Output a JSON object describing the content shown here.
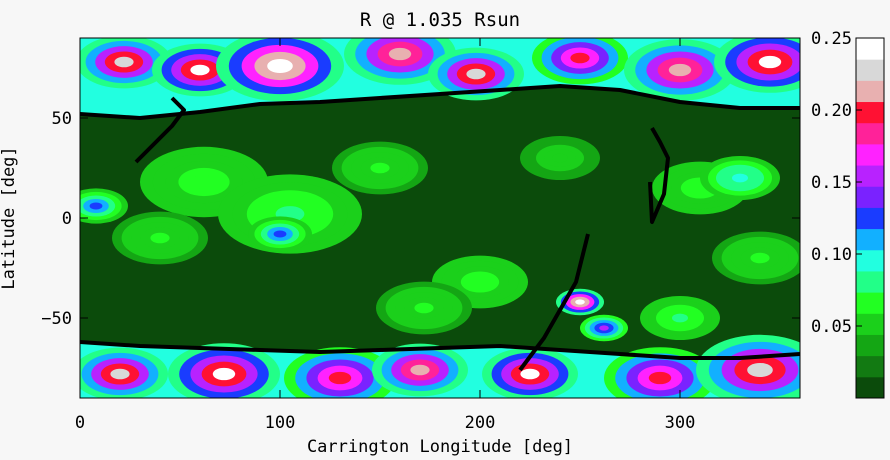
{
  "chart_data": {
    "type": "heatmap",
    "title": "R @ 1.035 Rsun",
    "xlabel": "Carrington Longitude [deg]",
    "ylabel": "Latitude [deg]",
    "xlim": [
      0,
      360
    ],
    "ylim": [
      -90,
      90
    ],
    "x_ticks": [
      0,
      100,
      200,
      300
    ],
    "x_tick_labels": [
      "0",
      "100",
      "200",
      "300"
    ],
    "y_ticks": [
      -50,
      0,
      50
    ],
    "y_tick_labels": [
      "−50",
      "0",
      "50"
    ],
    "colorbar": {
      "range": [
        0.0,
        0.25
      ],
      "ticks": [
        0.05,
        0.1,
        0.15,
        0.2,
        0.25
      ],
      "tick_labels": [
        "0.05",
        "0.10",
        "0.15",
        "0.20",
        "0.25"
      ],
      "colors": [
        "#0b4b0b",
        "#127a12",
        "#14a614",
        "#1bd01b",
        "#22ff22",
        "#22ff88",
        "#22ffe0",
        "#12b0ff",
        "#1a3cff",
        "#7a22ff",
        "#b822ff",
        "#ff22ff",
        "#ff2299",
        "#ff1133",
        "#e8b0b0",
        "#d8d8d8",
        "#ffffff"
      ]
    },
    "background_color": "#0b4b0b",
    "neutral_line_color": "#000000",
    "polar_north_boundary": {
      "lon": [
        0,
        30,
        60,
        90,
        120,
        150,
        180,
        210,
        240,
        270,
        300,
        330,
        360
      ],
      "lat": [
        52,
        50,
        53,
        57,
        58,
        60,
        62,
        64,
        66,
        64,
        58,
        55,
        55
      ]
    },
    "polar_south_boundary": {
      "lon": [
        0,
        30,
        60,
        90,
        120,
        150,
        180,
        210,
        240,
        270,
        300,
        330,
        360
      ],
      "lat": [
        -62,
        -64,
        -65,
        -66,
        -67,
        -66,
        -65,
        -64,
        -66,
        -68,
        -70,
        -70,
        -68
      ]
    },
    "neutral_line_segments": [
      {
        "lon": [
          220,
          232,
          240,
          248,
          254
        ],
        "lat": [
          -76,
          -60,
          -46,
          -32,
          -8
        ]
      },
      {
        "lon": [
          286,
          290,
          294,
          292,
          286,
          285
        ],
        "lat": [
          45,
          38,
          30,
          12,
          -2,
          18
        ]
      },
      {
        "lon": [
          28,
          38,
          46,
          52,
          46
        ],
        "lat": [
          28,
          38,
          46,
          54,
          60
        ]
      }
    ],
    "enhanced_patches": [
      {
        "lon": 22,
        "lat": 78,
        "r": 12,
        "v": 0.23
      },
      {
        "lon": 60,
        "lat": 74,
        "r": 12,
        "v": 0.24
      },
      {
        "lon": 100,
        "lat": 76,
        "r": 16,
        "v": 0.25
      },
      {
        "lon": 160,
        "lat": 82,
        "r": 14,
        "v": 0.22
      },
      {
        "lon": 198,
        "lat": 72,
        "r": 12,
        "v": 0.23
      },
      {
        "lon": 250,
        "lat": 80,
        "r": 12,
        "v": 0.2
      },
      {
        "lon": 300,
        "lat": 74,
        "r": 14,
        "v": 0.22
      },
      {
        "lon": 345,
        "lat": 78,
        "r": 14,
        "v": 0.24
      },
      {
        "lon": 20,
        "lat": -78,
        "r": 12,
        "v": 0.23
      },
      {
        "lon": 72,
        "lat": -78,
        "r": 14,
        "v": 0.24
      },
      {
        "lon": 130,
        "lat": -80,
        "r": 14,
        "v": 0.2
      },
      {
        "lon": 170,
        "lat": -76,
        "r": 12,
        "v": 0.22
      },
      {
        "lon": 225,
        "lat": -78,
        "r": 12,
        "v": 0.24
      },
      {
        "lon": 290,
        "lat": -80,
        "r": 14,
        "v": 0.2
      },
      {
        "lon": 340,
        "lat": -76,
        "r": 16,
        "v": 0.23
      },
      {
        "lon": 62,
        "lat": 18,
        "r": 16,
        "v": 0.07
      },
      {
        "lon": 40,
        "lat": -10,
        "r": 12,
        "v": 0.06
      },
      {
        "lon": 105,
        "lat": 2,
        "r": 18,
        "v": 0.08
      },
      {
        "lon": 100,
        "lat": -8,
        "r": 8,
        "v": 0.12
      },
      {
        "lon": 150,
        "lat": 25,
        "r": 12,
        "v": 0.06
      },
      {
        "lon": 200,
        "lat": -32,
        "r": 12,
        "v": 0.07
      },
      {
        "lon": 240,
        "lat": 30,
        "r": 10,
        "v": 0.05
      },
      {
        "lon": 262,
        "lat": -55,
        "r": 6,
        "v": 0.15
      },
      {
        "lon": 310,
        "lat": 15,
        "r": 12,
        "v": 0.07
      },
      {
        "lon": 330,
        "lat": 20,
        "r": 10,
        "v": 0.1
      },
      {
        "lon": 340,
        "lat": -20,
        "r": 12,
        "v": 0.06
      },
      {
        "lon": 250,
        "lat": -42,
        "r": 6,
        "v": 0.25
      },
      {
        "lon": 172,
        "lat": -45,
        "r": 12,
        "v": 0.06
      },
      {
        "lon": 8,
        "lat": 6,
        "r": 8,
        "v": 0.12
      },
      {
        "lon": 300,
        "lat": -50,
        "r": 10,
        "v": 0.08
      }
    ]
  }
}
